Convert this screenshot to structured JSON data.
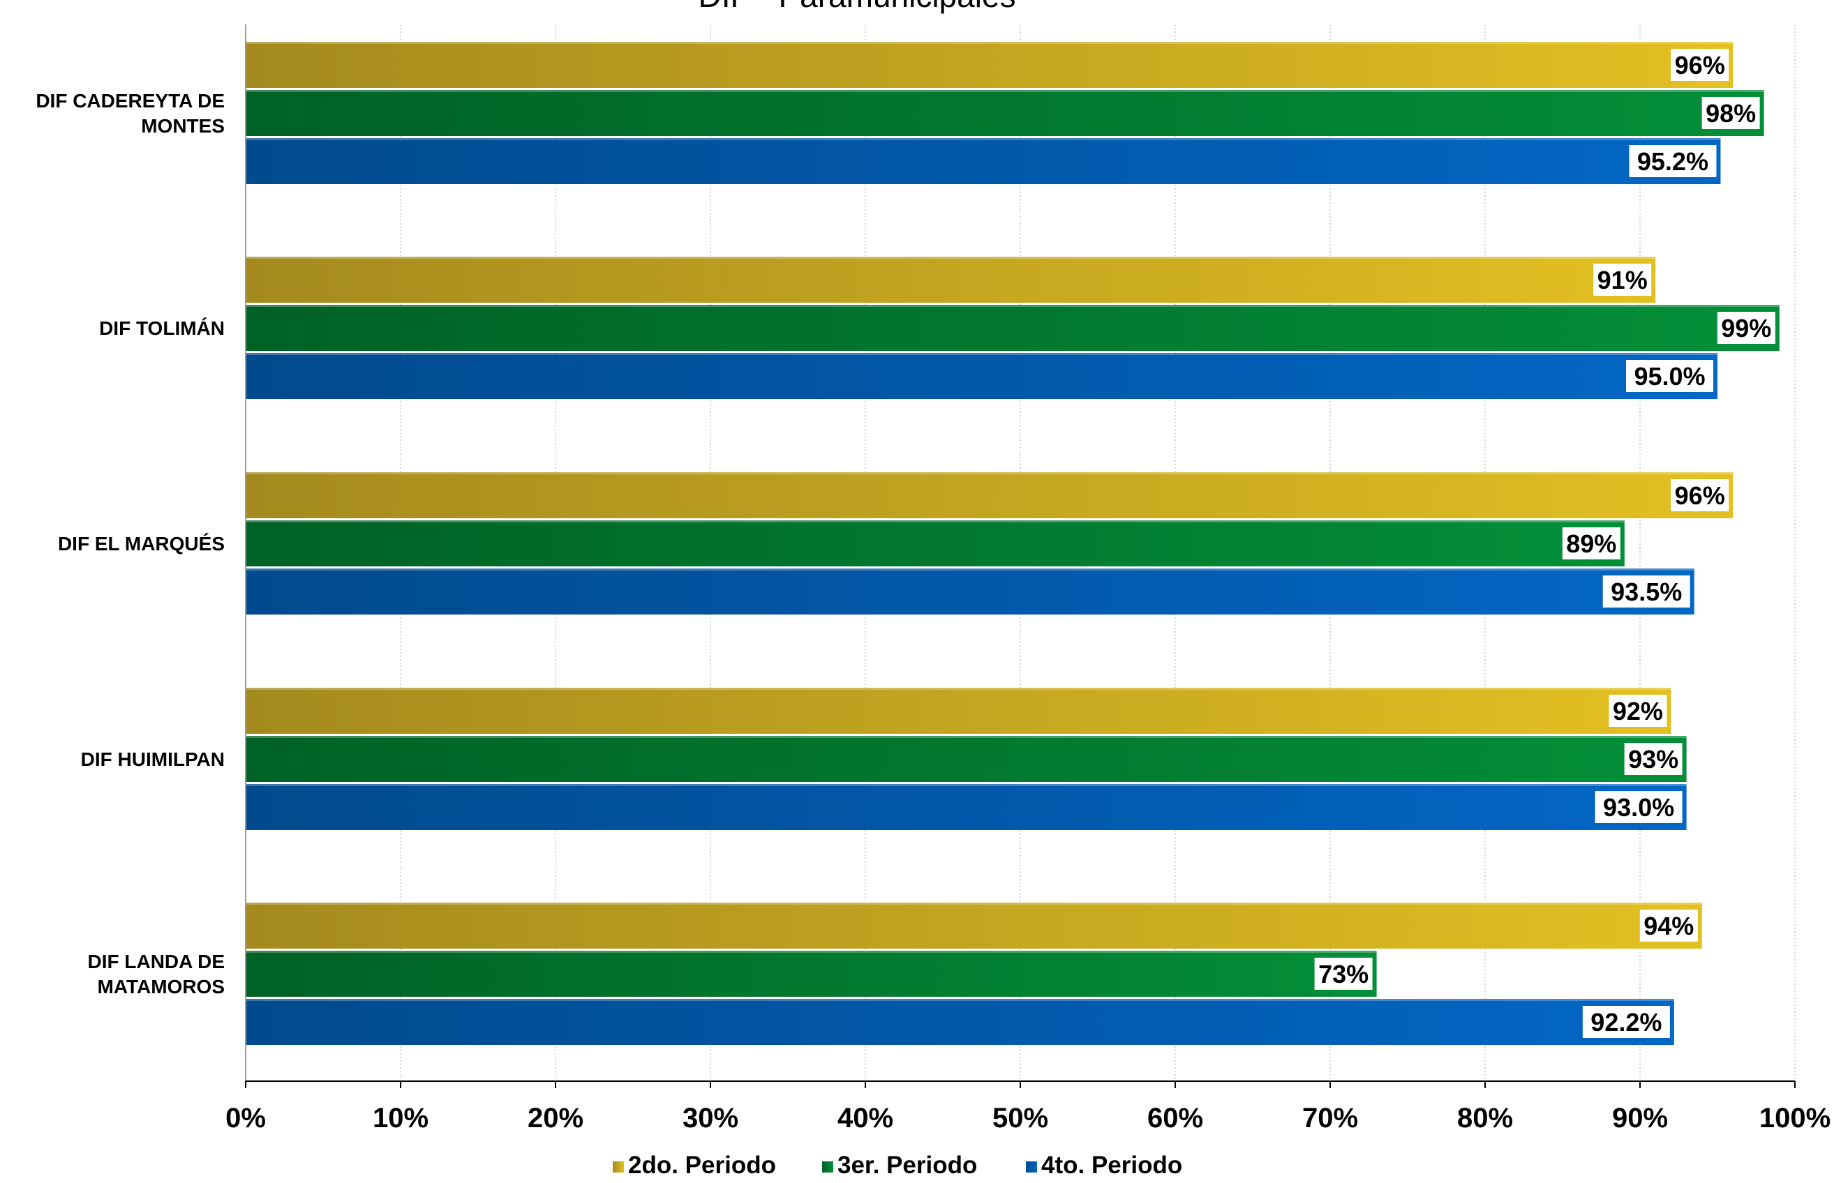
{
  "chart_data": {
    "type": "bar",
    "orientation": "horizontal",
    "title": "DIF - Paramunicipales",
    "categories": [
      [
        "DIF CADEREYTA DE",
        "MONTES"
      ],
      [
        "DIF TOLIMÁN"
      ],
      [
        "DIF EL MARQUÉS"
      ],
      [
        "DIF HUIMILPAN"
      ],
      [
        "DIF LANDA DE",
        "MATAMOROS"
      ]
    ],
    "series": [
      {
        "name": "2do. Periodo",
        "values": [
          96,
          91,
          96,
          92,
          94
        ],
        "labels": [
          "96%",
          "91%",
          "96%",
          "92%",
          "94%"
        ],
        "color_start": "#a48a1e",
        "color_end": "#e3c022"
      },
      {
        "name": "3er. Periodo",
        "values": [
          98,
          99,
          89,
          93,
          73
        ],
        "labels": [
          "98%",
          "99%",
          "89%",
          "93%",
          "73%"
        ],
        "color_start": "#006125",
        "color_end": "#038f38"
      },
      {
        "name": "4to. Periodo",
        "values": [
          95.2,
          95.0,
          93.5,
          93.0,
          92.2
        ],
        "labels": [
          "95.2%",
          "95.0%",
          "93.5%",
          "93.0%",
          "92.2%"
        ],
        "color_start": "#014a8d",
        "color_end": "#0367c6"
      }
    ],
    "x_ticks": [
      "0%",
      "10%",
      "20%",
      "30%",
      "40%",
      "50%",
      "60%",
      "70%",
      "80%",
      "90%",
      "100%"
    ],
    "xlim": [
      0,
      100
    ],
    "grid": true,
    "legend_position": "bottom"
  }
}
